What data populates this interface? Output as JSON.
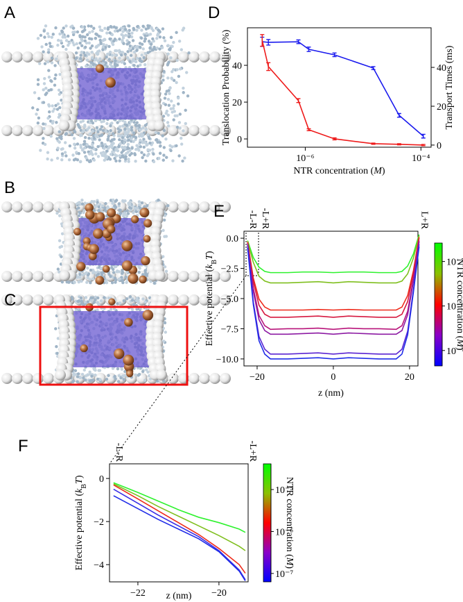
{
  "panel_labels": [
    "A",
    "B",
    "C",
    "D",
    "E",
    "F"
  ],
  "chart_data": [
    {
      "type": "line",
      "xscale": "log",
      "x": [
        1.8e-07,
        2.3e-07,
        7.6e-07,
        1.15e-06,
        3.2e-06,
        1.5e-05,
        4.2e-05,
        0.00011
      ],
      "xlim": [
        1e-07,
        0.00015
      ],
      "xticks": [
        {
          "value": 1e-06,
          "label": "10⁻⁶"
        },
        {
          "value": 0.0001,
          "label": "10⁻⁴"
        }
      ],
      "ylim": [
        -4.5,
        60.4
      ],
      "yticks": [
        0,
        20,
        40
      ],
      "y2lim": [
        -1.1,
        60.4
      ],
      "y2ticks": [
        0,
        20,
        40
      ],
      "xlabel": [
        "NTR concentration (",
        "M",
        ")"
      ],
      "xlabel_style": [
        "normal",
        "italic",
        "normal"
      ],
      "ylabel": "Translocation Probability (%)",
      "ylabel_color": "#2a2ae6",
      "y2label": "Transport Times (ms)",
      "y2label_color": "#e62a2a",
      "series": [
        {
          "color": "#1a1aee",
          "values": [
            52.8,
            52.5,
            52.8,
            48.7,
            45.7,
            38.5,
            12.8,
            1.5
          ],
          "errors": [
            2.5,
            1.5,
            1,
            1.2,
            1,
            0.8,
            1,
            1
          ]
        },
        {
          "color": "#ee1a1a",
          "axis": "y2",
          "values": [
            53.9,
            40.4,
            22.9,
            7.9,
            3.2,
            0.7,
            0.4,
            0
          ],
          "errors": [
            3,
            2,
            1,
            0.5,
            0.5,
            0.3,
            0.3,
            0.3
          ]
        }
      ]
    },
    {
      "type": "line",
      "x": [
        -22.5,
        -21,
        -19.5,
        -18,
        -16.5,
        -12,
        -8,
        -4,
        0,
        4,
        8,
        12,
        16.5,
        18,
        19.5,
        21,
        22.5
      ],
      "xlim": [
        -23.45,
        22.2
      ],
      "xticks": [
        {
          "value": -20,
          "label": "−20"
        },
        0,
        20
      ],
      "ylim": [
        -10.58,
        0.58
      ],
      "yticks": [
        {
          "value": 0,
          "label": "0.0"
        },
        {
          "value": -2.5,
          "label": "−2.5"
        },
        {
          "value": -5,
          "label": "−5.0"
        },
        {
          "value": -7.5,
          "label": "−7.5"
        },
        {
          "value": -10,
          "label": "−10.0"
        }
      ],
      "xlabel": [
        "z (nm)"
      ],
      "xlabel_style": [
        "normal"
      ],
      "ylabel": [
        "Effective potential (",
        "k",
        "B",
        "T",
        ")"
      ],
      "ylabel_style": [
        "normal",
        "italic",
        "sub",
        "italic",
        "normal"
      ],
      "annotations": [
        {
          "text": "-L-R",
          "x": -22.5
        },
        {
          "text": "-L+R",
          "x": -19.3
        },
        {
          "text": "L+R",
          "x": 22.5
        }
      ],
      "colorbar": {
        "clim": [
          4.5e-08,
          2.6e-05
        ],
        "colors": [
          "#0000ff",
          "#8a00c8",
          "#ff0000",
          "#8cc000",
          "#00ff00"
        ],
        "ticks": [
          {
            "value": 1e-07,
            "label": "10⁻⁷"
          },
          {
            "value": 1e-06,
            "label": "10⁻⁶"
          },
          {
            "value": 1e-05,
            "label": "10⁻⁵"
          }
        ],
        "label": [
          "NTR concentration (",
          "M",
          ")"
        ],
        "label_style": [
          "normal",
          "italic",
          "normal"
        ]
      },
      "series": [
        {
          "color": "#2ef22e",
          "values": [
            -0.2,
            -1.6,
            -2.4,
            -2.75,
            -2.85,
            -2.85,
            -2.8,
            -2.8,
            -2.85,
            -2.8,
            -2.8,
            -2.85,
            -2.85,
            -2.75,
            -2.3,
            -1.3,
            0.3
          ]
        },
        {
          "color": "#7fbf1e",
          "values": [
            -0.25,
            -2.0,
            -3.15,
            -3.55,
            -3.7,
            -3.7,
            -3.65,
            -3.6,
            -3.7,
            -3.6,
            -3.65,
            -3.7,
            -3.7,
            -3.55,
            -2.95,
            -1.65,
            0.2
          ]
        },
        {
          "color": "#ee2a1a",
          "values": [
            -0.3,
            -3.3,
            -5.05,
            -5.7,
            -5.95,
            -5.95,
            -5.95,
            -5.9,
            -5.95,
            -5.9,
            -5.95,
            -5.95,
            -5.95,
            -5.7,
            -4.75,
            -2.7,
            0.1
          ]
        },
        {
          "color": "#d6183f",
          "values": [
            -0.4,
            -3.6,
            -5.55,
            -6.3,
            -6.55,
            -6.55,
            -6.5,
            -6.45,
            -6.55,
            -6.45,
            -6.5,
            -6.55,
            -6.55,
            -6.3,
            -5.25,
            -2.95,
            0.0
          ]
        },
        {
          "color": "#b8147a",
          "values": [
            -0.45,
            -4.15,
            -6.4,
            -7.25,
            -7.55,
            -7.5,
            -7.5,
            -7.45,
            -7.55,
            -7.45,
            -7.5,
            -7.5,
            -7.55,
            -7.25,
            -6.05,
            -3.4,
            -0.2
          ]
        },
        {
          "color": "#8c1aa3",
          "values": [
            -0.5,
            -4.4,
            -6.75,
            -7.65,
            -7.95,
            -7.95,
            -7.9,
            -7.85,
            -7.95,
            -7.85,
            -7.9,
            -7.95,
            -7.95,
            -7.65,
            -6.35,
            -3.6,
            -0.3
          ]
        },
        {
          "color": "#5a24d2",
          "values": [
            -0.6,
            -5.3,
            -8.15,
            -9.2,
            -9.6,
            -9.6,
            -9.55,
            -9.5,
            -9.6,
            -9.5,
            -9.55,
            -9.6,
            -9.6,
            -9.2,
            -7.7,
            -4.3,
            -0.5
          ]
        },
        {
          "color": "#1f2be8",
          "values": [
            -0.8,
            -5.5,
            -8.5,
            -9.6,
            -10.0,
            -10.0,
            -9.95,
            -9.9,
            -10.0,
            -9.9,
            -9.95,
            -10.0,
            -10.0,
            -9.6,
            -8.0,
            -4.5,
            -0.7
          ]
        }
      ]
    },
    {
      "type": "line",
      "x": [
        -22.6,
        -22,
        -21.5,
        -21,
        -20.5,
        -20,
        -19.5,
        -19.35
      ],
      "xlim": [
        -22.7,
        -19.28
      ],
      "xticks": [
        {
          "value": -22,
          "label": "−22"
        },
        {
          "value": -20,
          "label": "−20"
        }
      ],
      "ylim": [
        -4.8,
        0.68
      ],
      "yticks": [
        0,
        {
          "value": -2,
          "label": "−2"
        },
        {
          "value": -4,
          "label": "−4"
        }
      ],
      "xlabel": [
        "z (nm)"
      ],
      "xlabel_style": [
        "normal"
      ],
      "ylabel": [
        "Effective potential (",
        "k",
        "B",
        "T",
        ")"
      ],
      "ylabel_style": [
        "normal",
        "italic",
        "sub",
        "italic",
        "normal"
      ],
      "annotations": [
        {
          "text": "-L-R",
          "x": -22.6
        },
        {
          "text": "-L+R",
          "x": -19.3
        }
      ],
      "colorbar": {
        "clim": [
          6.3e-08,
          4.1e-05
        ],
        "colors": [
          "#0000ff",
          "#8a00c8",
          "#ff0000",
          "#8cc000",
          "#00ff00"
        ],
        "ticks": [
          {
            "value": 1e-07,
            "label": "10⁻⁷"
          },
          {
            "value": 1e-06,
            "label": "10⁻⁶"
          },
          {
            "value": 1e-05,
            "label": "10⁻⁵"
          }
        ],
        "label": [
          "NTR concentration (",
          "M",
          ")"
        ],
        "label_style": [
          "normal",
          "italic",
          "normal"
        ]
      },
      "series": [
        {
          "color": "#2ef22e",
          "values": [
            -0.2,
            -0.65,
            -1.05,
            -1.45,
            -1.8,
            -2.05,
            -2.35,
            -2.5
          ]
        },
        {
          "color": "#7fbf1e",
          "values": [
            -0.25,
            -0.8,
            -1.3,
            -1.75,
            -2.2,
            -2.65,
            -3.15,
            -3.35
          ]
        },
        {
          "color": "#ee2a1a",
          "values": [
            -0.3,
            -0.95,
            -1.5,
            -2.05,
            -2.6,
            -3.25,
            -4.0,
            -4.4
          ]
        },
        {
          "color": "#3a2ee6",
          "values": [
            -0.5,
            -1.15,
            -1.7,
            -2.2,
            -2.7,
            -3.35,
            -4.25,
            -4.7
          ]
        },
        {
          "color": "#1f2be8",
          "values": [
            -0.8,
            -1.4,
            -1.9,
            -2.35,
            -2.8,
            -3.4,
            -4.3,
            -4.75
          ]
        }
      ]
    }
  ]
}
